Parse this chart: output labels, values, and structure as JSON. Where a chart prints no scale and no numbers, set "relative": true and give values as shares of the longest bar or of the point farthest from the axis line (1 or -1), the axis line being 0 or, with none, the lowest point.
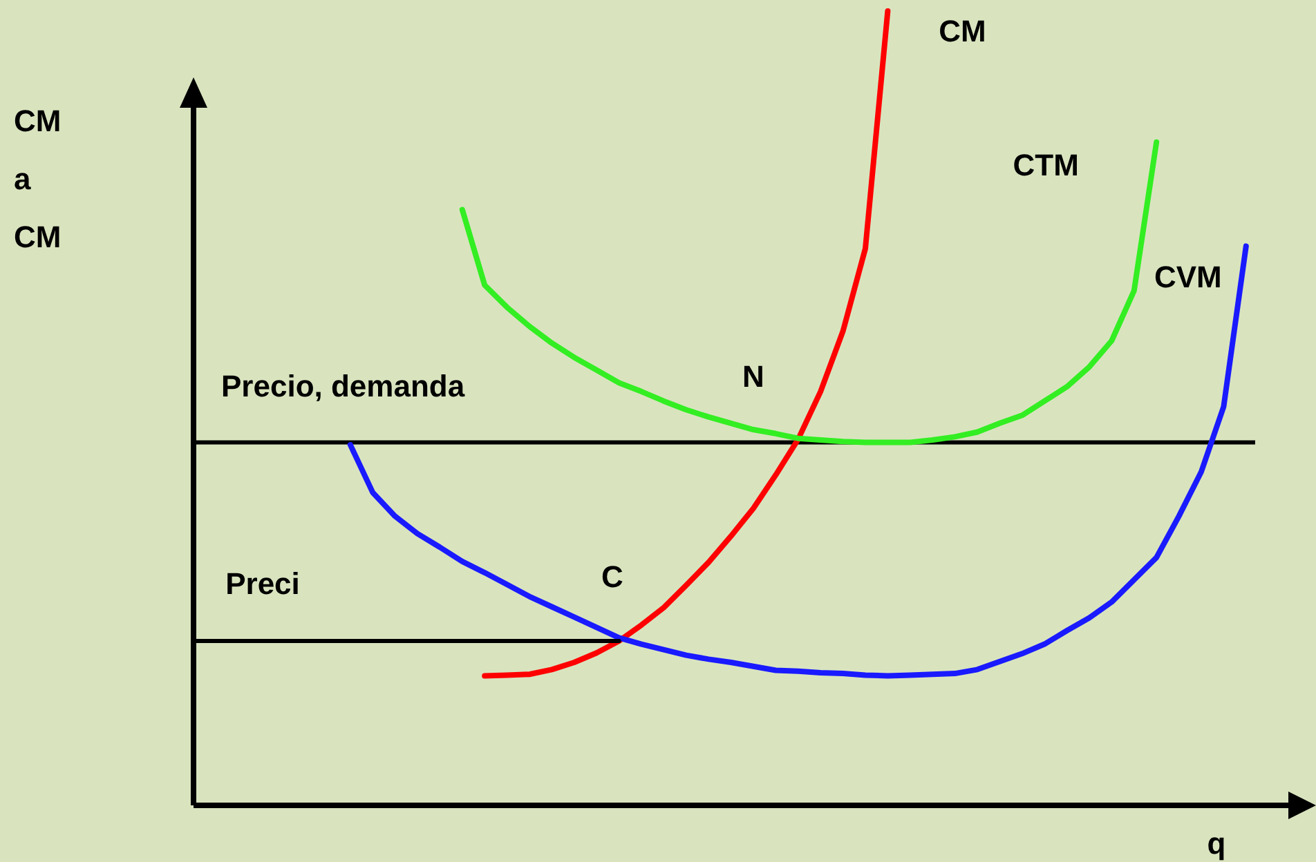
{
  "chart_data": {
    "type": "line",
    "relative": true,
    "xlabel": "q",
    "ylabel": "CM a CM",
    "line_style": "solid",
    "categories": [
      null,
      null,
      null,
      null,
      null,
      null,
      null,
      null,
      null,
      null,
      null,
      null,
      null,
      null,
      null,
      null,
      null,
      null,
      null,
      null,
      null,
      null,
      null,
      null,
      null,
      null,
      null,
      null,
      null,
      null,
      null,
      null,
      null,
      null,
      null,
      null,
      null,
      null,
      null,
      null,
      null,
      null,
      null,
      null,
      null,
      null,
      null,
      null,
      null,
      null,
      null
    ],
    "series": [
      {
        "name": "CM",
        "color": "#ff0000",
        "values": [
          null,
          null,
          null,
          null,
          null,
          null,
          null,
          null,
          null,
          null,
          null,
          null,
          null,
          0.163,
          0.164,
          0.165,
          0.171,
          0.18,
          0.192,
          0.207,
          0.227,
          0.249,
          0.277,
          0.306,
          0.339,
          0.374,
          0.416,
          0.461,
          0.521,
          0.597,
          0.701,
          1,
          null,
          null,
          null,
          null,
          null,
          null,
          null,
          null,
          null,
          null,
          null,
          null,
          null,
          null,
          null,
          null,
          null,
          null,
          null
        ]
      },
      {
        "name": "CTM",
        "color": "#33ee22",
        "values": [
          null,
          null,
          null,
          null,
          null,
          null,
          null,
          null,
          null,
          null,
          null,
          null,
          0.75,
          0.655,
          0.627,
          0.603,
          0.582,
          0.564,
          0.548,
          0.532,
          0.521,
          0.509,
          0.498,
          0.489,
          0.481,
          0.473,
          0.468,
          0.462,
          0.46,
          0.458,
          0.457,
          0.457,
          0.457,
          0.46,
          0.464,
          0.47,
          0.481,
          0.491,
          0.509,
          0.527,
          0.552,
          0.585,
          0.648,
          0.835,
          null,
          null,
          null,
          null,
          null,
          null,
          null
        ]
      },
      {
        "name": "CVM",
        "color": "#1a1aff",
        "values": [
          null,
          null,
          null,
          null,
          null,
          null,
          null,
          0.454,
          0.394,
          0.364,
          0.342,
          0.325,
          0.307,
          0.293,
          0.278,
          0.263,
          0.25,
          0.237,
          0.224,
          0.211,
          0.203,
          0.196,
          0.189,
          0.184,
          0.18,
          0.175,
          0.17,
          0.169,
          0.167,
          0.166,
          0.164,
          0.163,
          0.164,
          0.165,
          0.166,
          0.171,
          0.181,
          0.191,
          0.203,
          0.22,
          0.236,
          0.256,
          0.284,
          0.312,
          0.364,
          0.42,
          0.502,
          0.704,
          null,
          null,
          null
        ]
      },
      {
        "color": "#000000",
        "values": [
          0.207,
          0.207,
          0.207,
          0.207,
          0.207,
          0.207,
          0.207,
          0.207,
          0.207,
          0.207,
          0.207,
          0.207,
          0.207,
          0.207,
          0.207,
          0.207,
          0.207,
          0.207,
          0.207,
          0.207,
          null,
          null,
          null,
          null,
          null,
          null,
          null,
          null,
          null,
          null,
          null,
          null,
          null,
          null,
          null,
          null,
          null,
          null,
          null,
          null,
          null,
          null,
          null,
          null,
          null,
          null,
          null,
          null,
          null,
          null,
          null
        ]
      }
    ],
    "ref_lines": [
      {
        "axis": "y",
        "value": 0.457,
        "label": "Precio, demanda",
        "color": "#000000"
      }
    ],
    "annotations": [
      "N",
      "C",
      "Preci"
    ]
  }
}
